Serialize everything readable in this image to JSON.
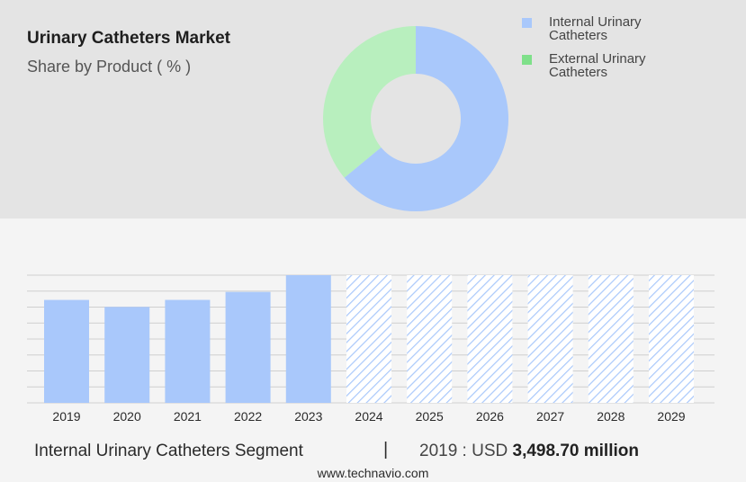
{
  "header": {
    "title": "Urinary Catheters Market",
    "subtitle": "Share by Product ( % )"
  },
  "legend": [
    {
      "label": "Internal Urinary Catheters",
      "color": "#a9c8fb"
    },
    {
      "label": "External Urinary Catheters",
      "color": "#7fe08a"
    }
  ],
  "footer": {
    "segment": "Internal Urinary Catheters Segment",
    "separator": "|",
    "value_prefix": "2019 : USD",
    "value_bold": "3,498.70 million",
    "website": "www.technavio.com"
  },
  "chart_data": [
    {
      "type": "pie",
      "donut": true,
      "categories": [
        "Internal Urinary Catheters",
        "External Urinary Catheters"
      ],
      "values": [
        64,
        36
      ],
      "colors": [
        "#a9c8fb",
        "#b8efbe"
      ]
    },
    {
      "type": "bar",
      "categories": [
        "2019",
        "2020",
        "2021",
        "2022",
        "2023",
        "2024",
        "2025",
        "2026",
        "2027",
        "2028",
        "2029"
      ],
      "values": [
        3498.7,
        3260,
        3500,
        3770,
        4340,
        4340,
        4340,
        4340,
        4340,
        4340,
        4340
      ],
      "forecast_from": "2024",
      "color": "#a9c8fb",
      "ylim": [
        0,
        4340
      ],
      "grid": true
    }
  ]
}
